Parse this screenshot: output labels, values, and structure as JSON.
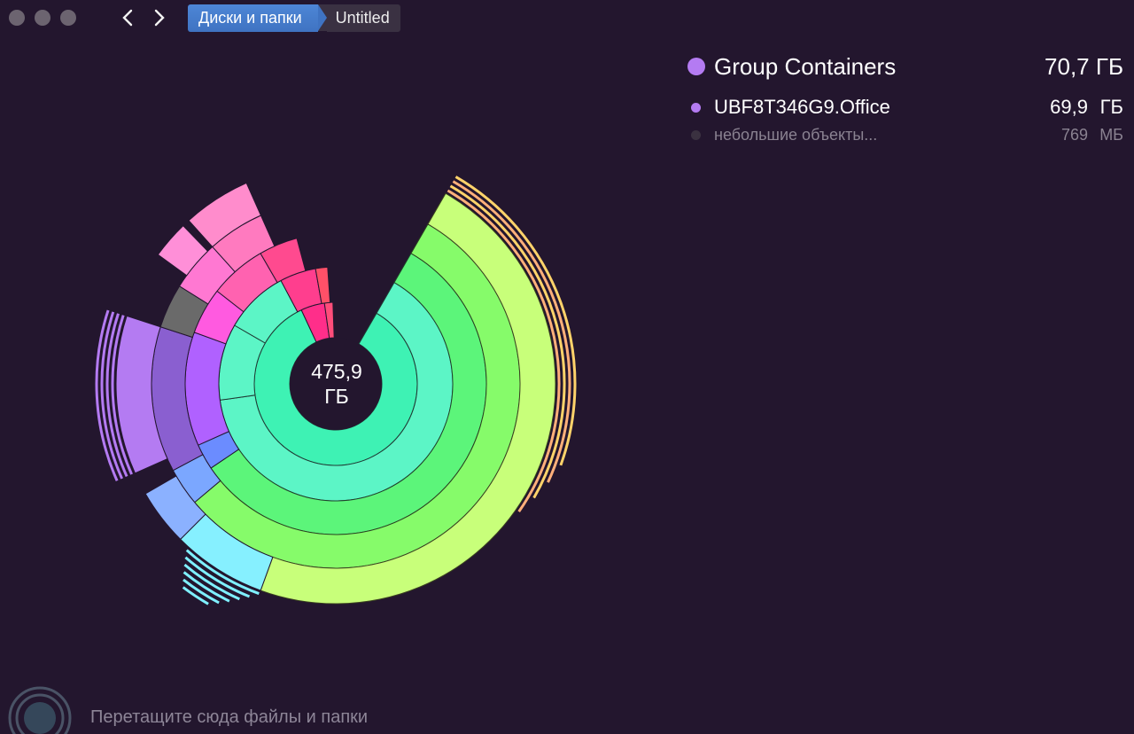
{
  "window": {
    "traffic_lights": [
      "close",
      "minimize",
      "zoom"
    ]
  },
  "nav": {
    "back_icon": "chevron-left-icon",
    "forward_icon": "chevron-right-icon"
  },
  "breadcrumb": {
    "root": "Диски и папки",
    "current": "Untitled"
  },
  "chart_center": {
    "value": "475,9",
    "unit": "ГБ"
  },
  "legend": {
    "main": {
      "name": "Group Containers",
      "size": "70,7 ГБ",
      "color": "#b47bf2"
    },
    "items": [
      {
        "name": "UBF8T346G9.Office",
        "size": "69,9",
        "unit": "ГБ",
        "color": "#b47bf2"
      },
      {
        "name": "небольшие объекты...",
        "size": "769",
        "unit": "МБ",
        "color": "#3a3140"
      }
    ]
  },
  "dropzone": {
    "text": "Перетащите сюда файлы и папки"
  },
  "colors": {
    "background": "#23162e",
    "accent_blue": "#3f73c2",
    "green_core": "#3ef2b4",
    "lime": "#c8ff7a",
    "purple": "#b47bf2",
    "pink": "#ff6fc5"
  }
}
